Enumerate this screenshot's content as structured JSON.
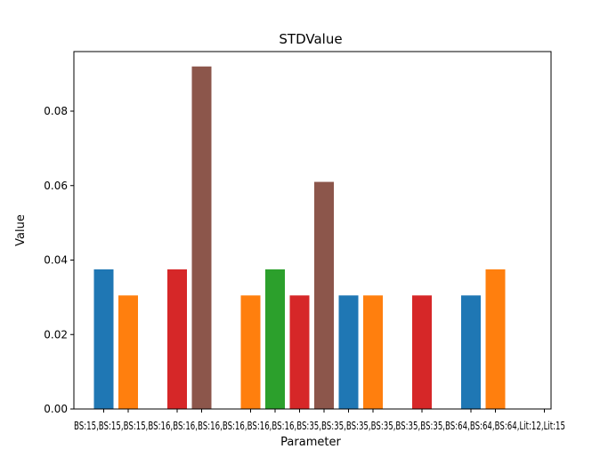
{
  "chart_data": {
    "type": "bar",
    "title": "STDValue",
    "xlabel": "Parameter",
    "ylabel": "Value",
    "ylim": [
      0,
      0.096
    ],
    "yticks": [
      "0.00",
      "0.02",
      "0.04",
      "0.06",
      "0.08"
    ],
    "ytick_values": [
      0,
      0.02,
      0.04,
      0.06,
      0.08
    ],
    "x_tick_text": "BS:15,BS:15,BS:15,BS:16,BS:16,BS:16,BS:16,BS:16,BS:16,BS:35,BS:35,BS:35,BS:35,BS:35,BS:35,BS:64,BS:64,BS:64,Lit:12,Lit:15",
    "bars": [
      {
        "slot": 0,
        "value": 0.0375,
        "color": "#1f77b4"
      },
      {
        "slot": 1,
        "value": 0.0305,
        "color": "#ff7f0e"
      },
      {
        "slot": 3,
        "value": 0.0375,
        "color": "#d62728"
      },
      {
        "slot": 4,
        "value": 0.092,
        "color": "#8c564b"
      },
      {
        "slot": 6,
        "value": 0.0305,
        "color": "#ff7f0e"
      },
      {
        "slot": 7,
        "value": 0.0375,
        "color": "#2ca02c"
      },
      {
        "slot": 8,
        "value": 0.0305,
        "color": "#d62728"
      },
      {
        "slot": 9,
        "value": 0.061,
        "color": "#8c564b"
      },
      {
        "slot": 10,
        "value": 0.0305,
        "color": "#1f77b4"
      },
      {
        "slot": 11,
        "value": 0.0305,
        "color": "#ff7f0e"
      },
      {
        "slot": 13,
        "value": 0.0305,
        "color": "#d62728"
      },
      {
        "slot": 15,
        "value": 0.0305,
        "color": "#1f77b4"
      },
      {
        "slot": 16,
        "value": 0.0375,
        "color": "#ff7f0e"
      },
      {
        "slot": 18,
        "value": 0,
        "color": "#d62728"
      }
    ]
  }
}
